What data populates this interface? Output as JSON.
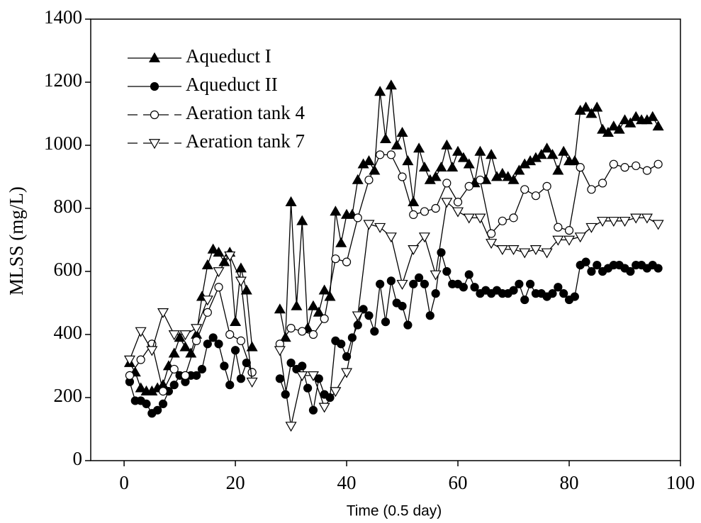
{
  "chart_data": {
    "type": "line",
    "xlabel": "Time (0.5 day)",
    "ylabel": "MLSS (mg/L)",
    "xlim": [
      -6,
      100
    ],
    "xticks": [
      0,
      20,
      40,
      60,
      80,
      100
    ],
    "ylim": [
      0,
      1400
    ],
    "yticks": [
      0,
      200,
      400,
      600,
      800,
      1000,
      1200,
      1400
    ],
    "legend": "upper left",
    "series": [
      {
        "name": "Aqueduct I",
        "color": "#000000",
        "marker": "triangle-up",
        "filled": true,
        "x": [
          1,
          2,
          3,
          4,
          5,
          6,
          7,
          8,
          9,
          10,
          11,
          12,
          13,
          14,
          15,
          16,
          17,
          18,
          19,
          20,
          21,
          22,
          23,
          24,
          28,
          29,
          30,
          31,
          32,
          33,
          34,
          35,
          36,
          37,
          38,
          39,
          40,
          41,
          42,
          43,
          44,
          45,
          46,
          47,
          48,
          49,
          50,
          51,
          52,
          53,
          54,
          55,
          56,
          57,
          58,
          59,
          60,
          61,
          62,
          63,
          64,
          65,
          66,
          67,
          68,
          69,
          70,
          71,
          72,
          73,
          74,
          75,
          76,
          77,
          78,
          79,
          80,
          81,
          82,
          83,
          84,
          85,
          86,
          87,
          88,
          89,
          90,
          91,
          92,
          93,
          94,
          95,
          96
        ],
        "values": [
          310,
          280,
          230,
          220,
          220,
          230,
          240,
          300,
          340,
          390,
          360,
          340,
          400,
          520,
          620,
          670,
          660,
          630,
          660,
          440,
          610,
          540,
          360,
          null,
          480,
          390,
          820,
          490,
          760,
          420,
          490,
          470,
          540,
          520,
          790,
          690,
          780,
          780,
          890,
          940,
          950,
          920,
          1170,
          1020,
          1190,
          1000,
          1040,
          950,
          820,
          990,
          930,
          890,
          900,
          930,
          1000,
          930,
          980,
          960,
          940,
          880,
          980,
          890,
          970,
          900,
          910,
          900,
          890,
          920,
          940,
          950,
          960,
          970,
          990,
          970,
          920,
          980,
          950,
          950,
          1110,
          1120,
          1100,
          1120,
          1050,
          1040,
          1060,
          1050,
          1080,
          1070,
          1090,
          1080,
          1080,
          1090,
          1060
        ]
      },
      {
        "name": "Aqueduct II",
        "color": "#000000",
        "marker": "circle",
        "filled": true,
        "x": [
          1,
          2,
          3,
          4,
          5,
          6,
          7,
          8,
          9,
          10,
          11,
          12,
          13,
          14,
          15,
          16,
          17,
          18,
          19,
          20,
          21,
          22,
          23,
          24,
          28,
          29,
          30,
          31,
          32,
          33,
          34,
          35,
          36,
          37,
          38,
          39,
          40,
          41,
          42,
          43,
          44,
          45,
          46,
          47,
          48,
          49,
          50,
          51,
          52,
          53,
          54,
          55,
          56,
          57,
          58,
          59,
          60,
          61,
          62,
          63,
          64,
          65,
          66,
          67,
          68,
          69,
          70,
          71,
          72,
          73,
          74,
          75,
          76,
          77,
          78,
          79,
          80,
          81,
          82,
          83,
          84,
          85,
          86,
          87,
          88,
          89,
          90,
          91,
          92,
          93,
          94,
          95,
          96
        ],
        "values": [
          250,
          190,
          190,
          180,
          150,
          160,
          180,
          220,
          240,
          270,
          250,
          270,
          270,
          290,
          370,
          390,
          370,
          300,
          240,
          350,
          260,
          310,
          280,
          null,
          260,
          210,
          310,
          290,
          300,
          230,
          160,
          260,
          210,
          200,
          380,
          370,
          330,
          390,
          430,
          480,
          460,
          410,
          560,
          440,
          570,
          500,
          490,
          430,
          560,
          580,
          560,
          460,
          530,
          660,
          600,
          560,
          560,
          550,
          590,
          550,
          530,
          540,
          530,
          540,
          530,
          530,
          540,
          560,
          510,
          560,
          530,
          530,
          520,
          530,
          550,
          530,
          510,
          520,
          620,
          630,
          600,
          620,
          600,
          610,
          620,
          620,
          610,
          600,
          620,
          620,
          610,
          620,
          610
        ]
      },
      {
        "name": "Aeration tank 4",
        "color": "#000000",
        "marker": "circle",
        "filled": false,
        "x": [
          1,
          3,
          5,
          7,
          9,
          11,
          13,
          15,
          17,
          19,
          21,
          23,
          25,
          28,
          30,
          32,
          34,
          36,
          38,
          40,
          42,
          44,
          46,
          48,
          50,
          52,
          54,
          56,
          58,
          60,
          62,
          64,
          66,
          68,
          70,
          72,
          74,
          76,
          78,
          80,
          82,
          84,
          86,
          88,
          90,
          92,
          94,
          96
        ],
        "values": [
          270,
          320,
          370,
          220,
          290,
          270,
          380,
          470,
          550,
          400,
          380,
          280,
          null,
          370,
          420,
          410,
          400,
          450,
          640,
          630,
          770,
          890,
          970,
          970,
          900,
          780,
          790,
          800,
          880,
          820,
          870,
          890,
          720,
          760,
          770,
          860,
          840,
          870,
          740,
          730,
          930,
          860,
          880,
          940,
          930,
          935,
          920,
          940
        ]
      },
      {
        "name": "Aeration tank 7",
        "color": "#000000",
        "marker": "triangle-down",
        "filled": false,
        "x": [
          1,
          3,
          5,
          7,
          9,
          11,
          13,
          15,
          17,
          19,
          21,
          23,
          25,
          28,
          30,
          32,
          34,
          36,
          38,
          40,
          42,
          44,
          46,
          48,
          50,
          52,
          54,
          56,
          58,
          60,
          62,
          64,
          66,
          68,
          70,
          72,
          74,
          76,
          78,
          80,
          82,
          84,
          86,
          88,
          90,
          92,
          94,
          96
        ],
        "values": [
          320,
          410,
          350,
          470,
          400,
          400,
          420,
          510,
          600,
          650,
          570,
          250,
          null,
          350,
          110,
          270,
          270,
          170,
          220,
          280,
          460,
          750,
          740,
          710,
          560,
          670,
          710,
          590,
          820,
          790,
          770,
          770,
          690,
          670,
          670,
          660,
          670,
          660,
          700,
          700,
          710,
          740,
          760,
          760,
          760,
          770,
          770,
          750
        ]
      }
    ]
  }
}
